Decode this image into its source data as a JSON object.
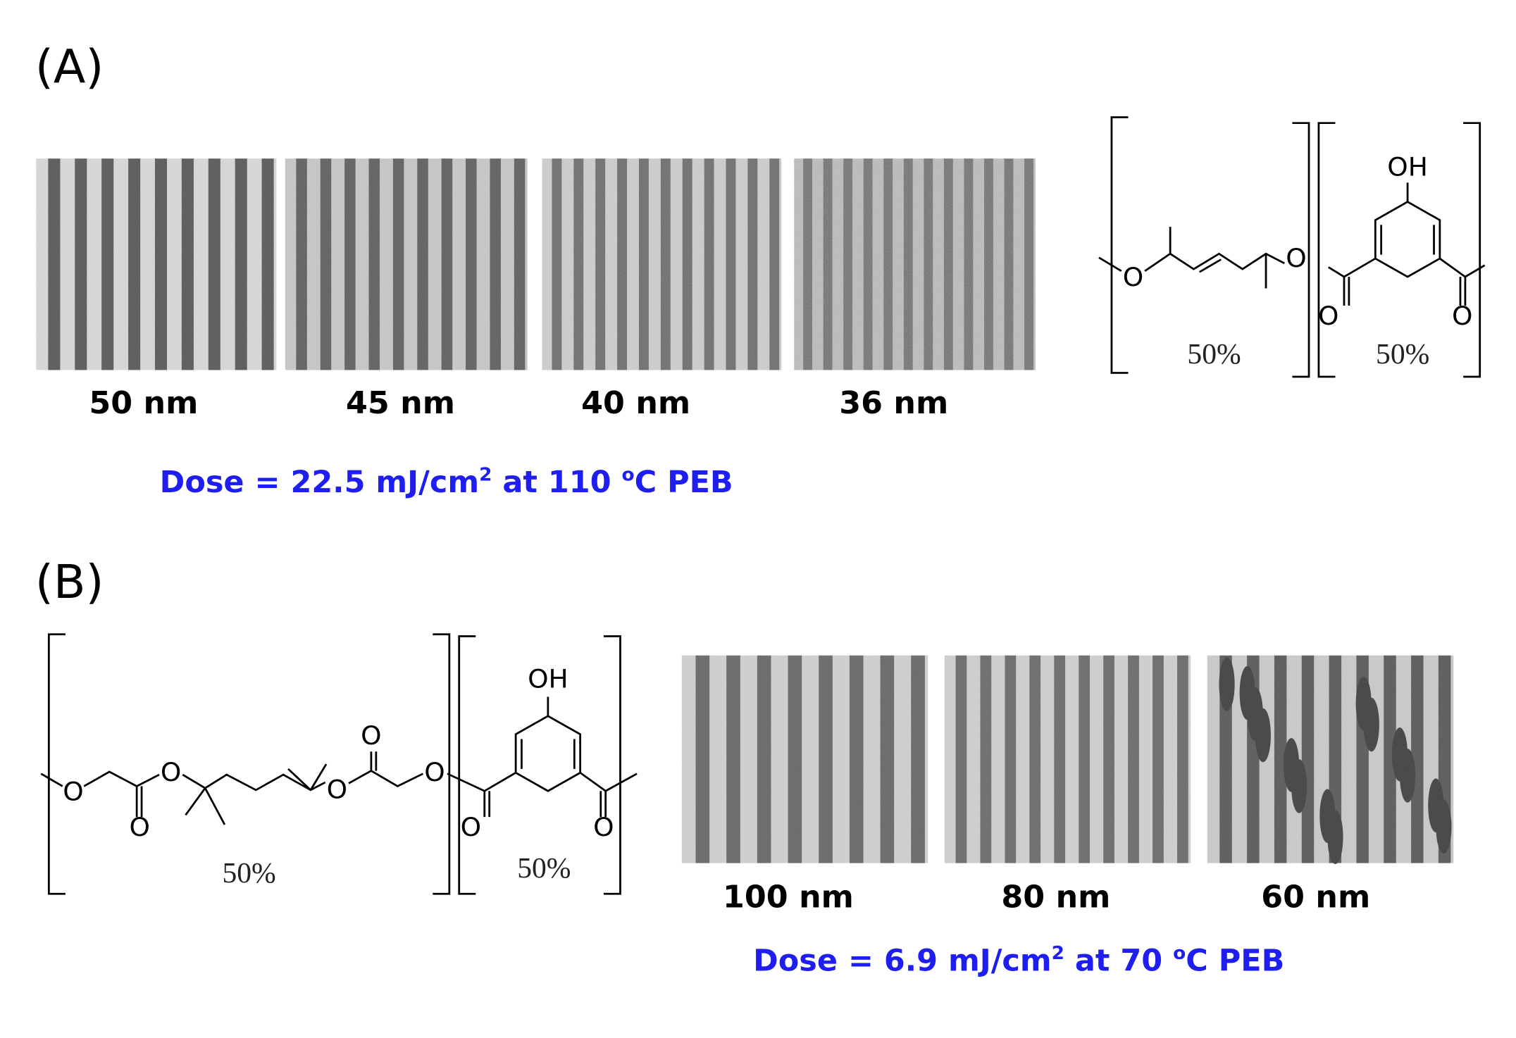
{
  "panels": [
    {
      "label": "(A)",
      "images": [
        {
          "caption": "50 nm"
        },
        {
          "caption": "45 nm"
        },
        {
          "caption": "40 nm"
        },
        {
          "caption": "36 nm"
        }
      ],
      "dose": {
        "text": "Dose = 22.5 mJ/cm",
        "sup": "2",
        "middle": " at 110 ",
        "degree": "o",
        "end": "C PEB"
      },
      "structure": {
        "labels": [
          "O",
          "O",
          "OH",
          "O",
          "O",
          "50%",
          "50%"
        ]
      }
    },
    {
      "label": "(B)",
      "images": [
        {
          "caption": "100 nm"
        },
        {
          "caption": "80 nm"
        },
        {
          "caption": "60 nm"
        }
      ],
      "dose": {
        "text": "Dose = 6.9 mJ/cm",
        "sup": "2",
        "middle": " at 70 ",
        "degree": "o",
        "end": "C PEB"
      },
      "structure": {
        "labels": [
          "O",
          "O",
          "O",
          "O",
          "O",
          "O",
          "OH",
          "O",
          "O",
          "50%",
          "50%"
        ]
      }
    }
  ]
}
